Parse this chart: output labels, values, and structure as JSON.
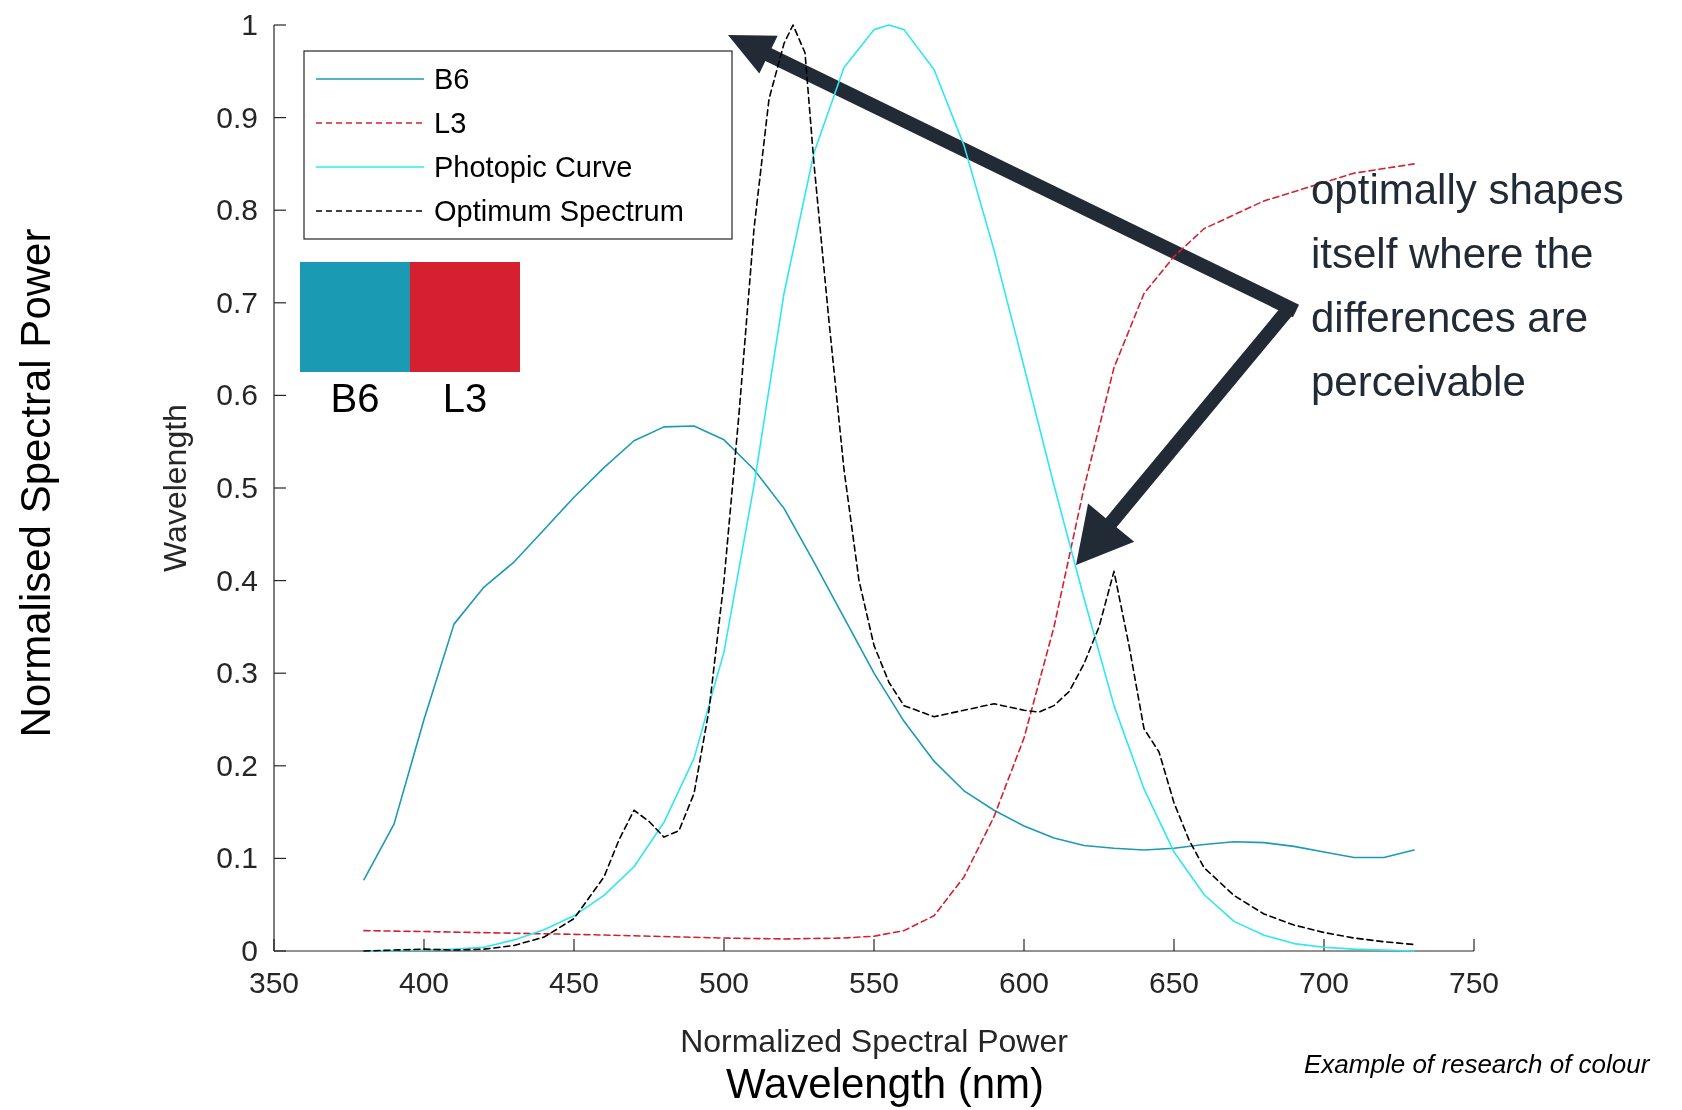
{
  "chart_data": {
    "type": "line",
    "xlabel": "Normalized Spectral Power",
    "ylabel": "Wavelength",
    "xlim": [
      350,
      750
    ],
    "xticks": [
      350,
      400,
      450,
      500,
      550,
      600,
      650,
      700,
      750
    ],
    "ylim": [
      0,
      1
    ],
    "yticks": [
      0,
      0.1,
      0.2,
      0.3,
      0.4,
      0.5,
      0.6,
      0.7,
      0.8,
      0.9,
      1
    ],
    "grid": false,
    "legend": "top left",
    "series": [
      {
        "name": "B6",
        "color": "#1b9bb3",
        "line_style": "solid",
        "x": [
          380,
          390,
          400,
          410,
          420,
          430,
          440,
          450,
          460,
          470,
          480,
          490,
          500,
          510,
          520,
          530,
          540,
          550,
          560,
          570,
          580,
          590,
          600,
          610,
          620,
          630,
          640,
          650,
          660,
          670,
          680,
          690,
          700,
          710,
          720,
          730
        ],
        "values": [
          0.077,
          0.137,
          0.25,
          0.353,
          0.393,
          0.42,
          0.455,
          0.49,
          0.522,
          0.551,
          0.566,
          0.567,
          0.552,
          0.52,
          0.478,
          0.42,
          0.36,
          0.3,
          0.248,
          0.205,
          0.173,
          0.152,
          0.135,
          0.122,
          0.114,
          0.111,
          0.109,
          0.111,
          0.115,
          0.118,
          0.117,
          0.113,
          0.107,
          0.101,
          0.101,
          0.109
        ]
      },
      {
        "name": "L3",
        "color": "#d6202f",
        "line_style": "dashed",
        "x": [
          380,
          400,
          450,
          500,
          520,
          540,
          550,
          560,
          570,
          580,
          590,
          600,
          610,
          620,
          630,
          640,
          650,
          660,
          670,
          680,
          690,
          700,
          710,
          720,
          730
        ],
        "values": [
          0.022,
          0.021,
          0.018,
          0.014,
          0.013,
          0.014,
          0.016,
          0.022,
          0.038,
          0.08,
          0.145,
          0.23,
          0.35,
          0.5,
          0.63,
          0.71,
          0.75,
          0.78,
          0.795,
          0.81,
          0.82,
          0.83,
          0.84,
          0.845,
          0.85
        ]
      },
      {
        "name": "Photopic Curve",
        "color": "#2ee8ee",
        "line_style": "solid",
        "x": [
          380,
          400,
          410,
          420,
          430,
          440,
          450,
          460,
          470,
          480,
          490,
          500,
          510,
          520,
          530,
          540,
          550,
          555,
          560,
          570,
          580,
          590,
          600,
          610,
          620,
          630,
          640,
          650,
          660,
          670,
          680,
          690,
          700,
          710,
          720,
          730
        ],
        "values": [
          0,
          0.001,
          0.002,
          0.004,
          0.012,
          0.023,
          0.038,
          0.06,
          0.091,
          0.139,
          0.208,
          0.323,
          0.503,
          0.71,
          0.862,
          0.954,
          0.995,
          1,
          0.995,
          0.952,
          0.87,
          0.757,
          0.631,
          0.503,
          0.381,
          0.265,
          0.175,
          0.107,
          0.061,
          0.032,
          0.017,
          0.008,
          0.004,
          0.002,
          0.001,
          0
        ]
      },
      {
        "name": "Optimum Spectrum",
        "color": "#000000",
        "line_style": "dashed",
        "x": [
          380,
          400,
          410,
          420,
          430,
          440,
          450,
          460,
          465,
          470,
          475,
          480,
          485,
          490,
          495,
          500,
          505,
          510,
          515,
          520,
          523,
          527,
          530,
          535,
          540,
          545,
          550,
          555,
          560,
          570,
          580,
          590,
          600,
          605,
          610,
          615,
          620,
          625,
          630,
          635,
          640,
          645,
          650,
          655,
          660,
          670,
          680,
          690,
          700,
          710,
          720,
          730
        ],
        "values": [
          0,
          0.002,
          0.001,
          0.002,
          0.006,
          0.015,
          0.035,
          0.08,
          0.12,
          0.152,
          0.14,
          0.123,
          0.13,
          0.17,
          0.26,
          0.4,
          0.58,
          0.78,
          0.92,
          0.98,
          1,
          0.97,
          0.85,
          0.68,
          0.52,
          0.4,
          0.33,
          0.29,
          0.265,
          0.253,
          0.26,
          0.267,
          0.26,
          0.258,
          0.265,
          0.28,
          0.31,
          0.35,
          0.41,
          0.33,
          0.24,
          0.215,
          0.16,
          0.12,
          0.09,
          0.06,
          0.04,
          0.028,
          0.02,
          0.014,
          0.01,
          0.007
        ]
      }
    ],
    "annotations": [
      "Normalised Spectral Power",
      "Wavelength (nm)",
      "optimally shapes itself where the differences are perceivable",
      "Example of research of colour"
    ]
  }
}
